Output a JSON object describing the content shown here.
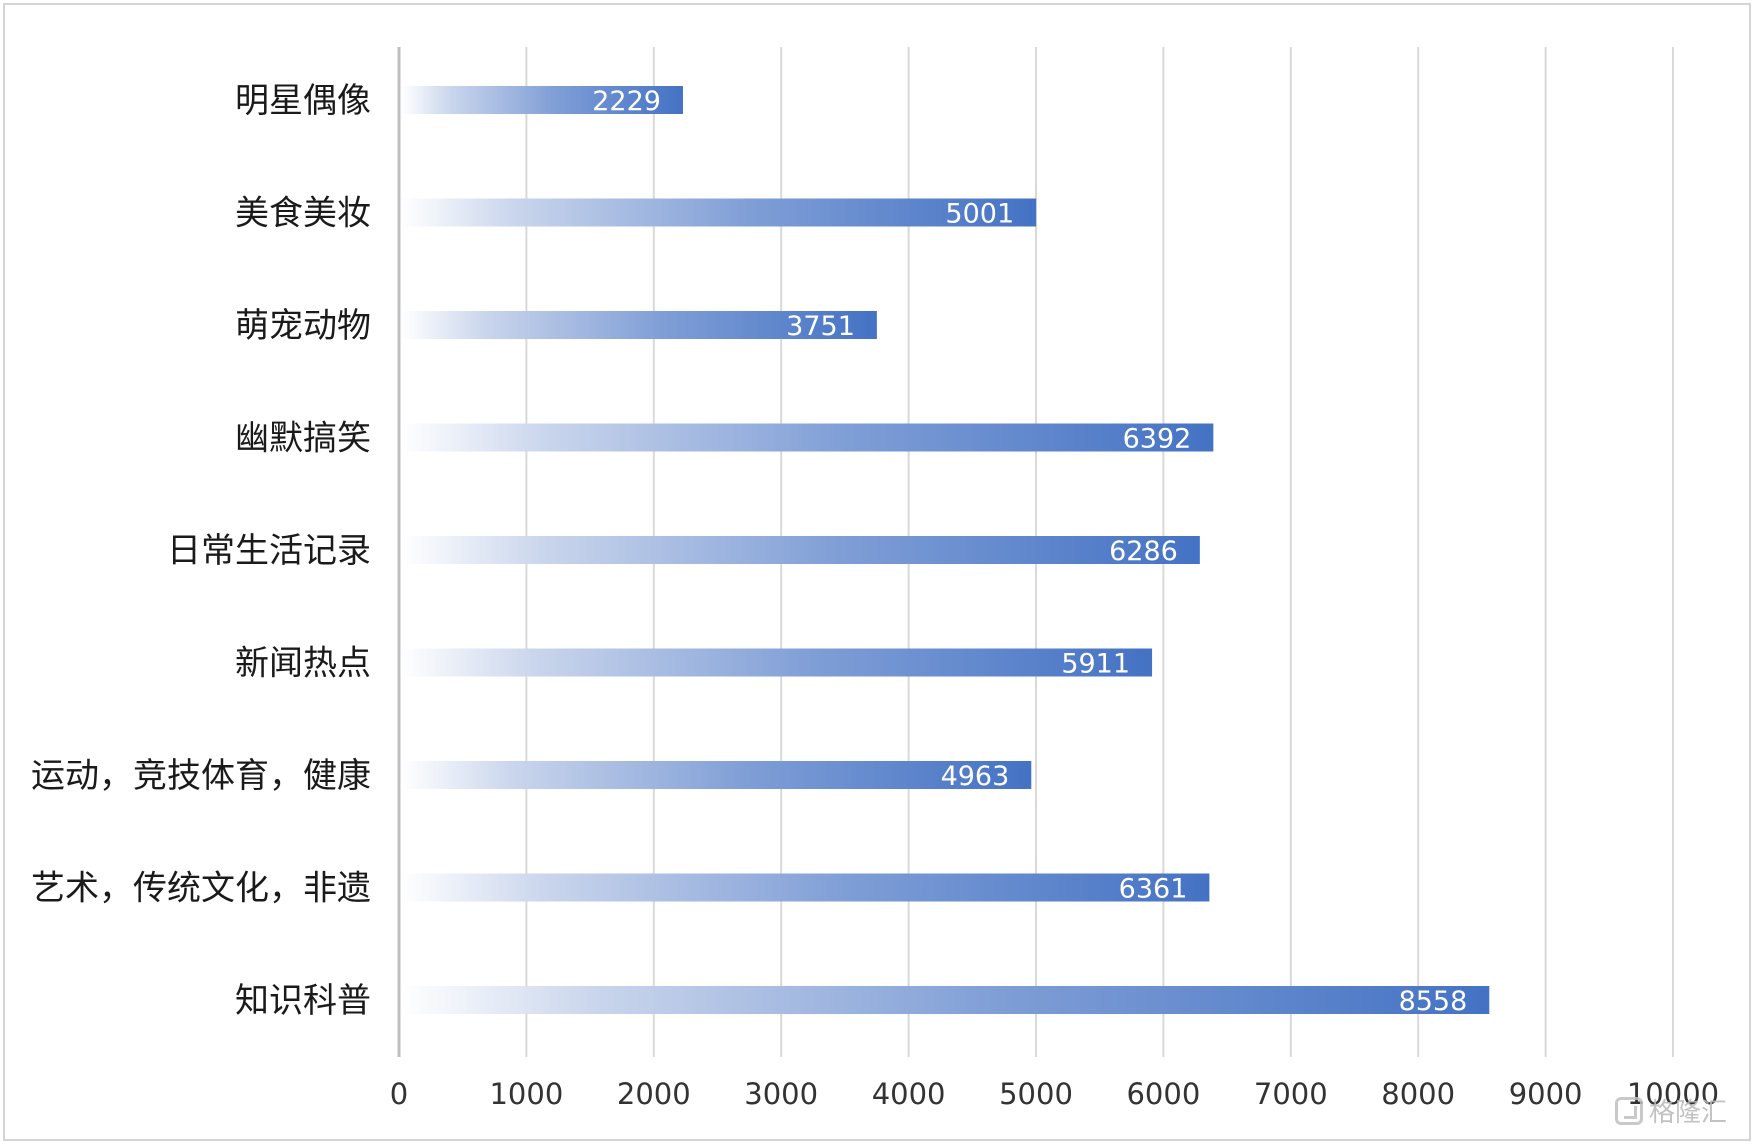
{
  "chart_data": {
    "type": "bar",
    "orientation": "horizontal",
    "categories": [
      "明星偶像",
      "美食美妆",
      "萌宠动物",
      "幽默搞笑",
      "日常生活记录",
      "新闻热点",
      "运动，竞技体育，健康",
      "艺术，传统文化，非遗",
      "知识科普"
    ],
    "values": [
      2229,
      5001,
      3751,
      6392,
      6286,
      5911,
      4963,
      6361,
      8558
    ],
    "xlim": [
      0,
      10000
    ],
    "xticks": [
      0,
      1000,
      2000,
      3000,
      4000,
      5000,
      6000,
      7000,
      8000,
      9000,
      10000
    ],
    "title": "",
    "xlabel": "",
    "ylabel": "",
    "grid": "vertical",
    "legend": "none",
    "bar_color": "#4472c4",
    "bar_gradient_start": "#ffffff",
    "data_labels": "inside-end"
  },
  "watermark": {
    "text": "格隆汇"
  }
}
